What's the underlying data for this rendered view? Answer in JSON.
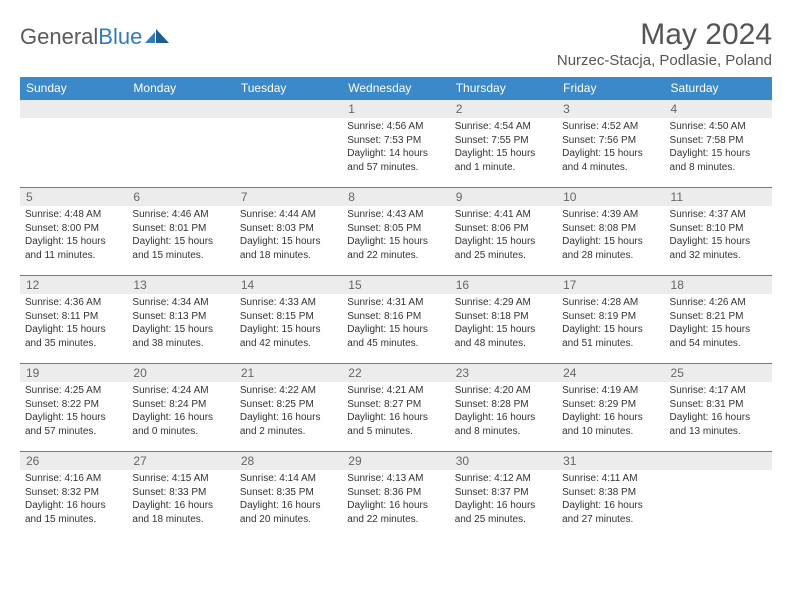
{
  "logo": {
    "text1": "General",
    "text2": "Blue"
  },
  "title": "May 2024",
  "location": "Nurzec-Stacja, Podlasie, Poland",
  "day_headers": [
    "Sunday",
    "Monday",
    "Tuesday",
    "Wednesday",
    "Thursday",
    "Friday",
    "Saturday"
  ],
  "colors": {
    "header_bg": "#3b89c9",
    "header_text": "#ffffff",
    "daynum_bg": "#ececec",
    "row_border": "#3b89c9",
    "text": "#333333",
    "title_text": "#555555"
  },
  "weeks": [
    [
      {
        "num": "",
        "lines": []
      },
      {
        "num": "",
        "lines": []
      },
      {
        "num": "",
        "lines": []
      },
      {
        "num": "1",
        "lines": [
          "Sunrise: 4:56 AM",
          "Sunset: 7:53 PM",
          "Daylight: 14 hours",
          "and 57 minutes."
        ]
      },
      {
        "num": "2",
        "lines": [
          "Sunrise: 4:54 AM",
          "Sunset: 7:55 PM",
          "Daylight: 15 hours",
          "and 1 minute."
        ]
      },
      {
        "num": "3",
        "lines": [
          "Sunrise: 4:52 AM",
          "Sunset: 7:56 PM",
          "Daylight: 15 hours",
          "and 4 minutes."
        ]
      },
      {
        "num": "4",
        "lines": [
          "Sunrise: 4:50 AM",
          "Sunset: 7:58 PM",
          "Daylight: 15 hours",
          "and 8 minutes."
        ]
      }
    ],
    [
      {
        "num": "5",
        "lines": [
          "Sunrise: 4:48 AM",
          "Sunset: 8:00 PM",
          "Daylight: 15 hours",
          "and 11 minutes."
        ]
      },
      {
        "num": "6",
        "lines": [
          "Sunrise: 4:46 AM",
          "Sunset: 8:01 PM",
          "Daylight: 15 hours",
          "and 15 minutes."
        ]
      },
      {
        "num": "7",
        "lines": [
          "Sunrise: 4:44 AM",
          "Sunset: 8:03 PM",
          "Daylight: 15 hours",
          "and 18 minutes."
        ]
      },
      {
        "num": "8",
        "lines": [
          "Sunrise: 4:43 AM",
          "Sunset: 8:05 PM",
          "Daylight: 15 hours",
          "and 22 minutes."
        ]
      },
      {
        "num": "9",
        "lines": [
          "Sunrise: 4:41 AM",
          "Sunset: 8:06 PM",
          "Daylight: 15 hours",
          "and 25 minutes."
        ]
      },
      {
        "num": "10",
        "lines": [
          "Sunrise: 4:39 AM",
          "Sunset: 8:08 PM",
          "Daylight: 15 hours",
          "and 28 minutes."
        ]
      },
      {
        "num": "11",
        "lines": [
          "Sunrise: 4:37 AM",
          "Sunset: 8:10 PM",
          "Daylight: 15 hours",
          "and 32 minutes."
        ]
      }
    ],
    [
      {
        "num": "12",
        "lines": [
          "Sunrise: 4:36 AM",
          "Sunset: 8:11 PM",
          "Daylight: 15 hours",
          "and 35 minutes."
        ]
      },
      {
        "num": "13",
        "lines": [
          "Sunrise: 4:34 AM",
          "Sunset: 8:13 PM",
          "Daylight: 15 hours",
          "and 38 minutes."
        ]
      },
      {
        "num": "14",
        "lines": [
          "Sunrise: 4:33 AM",
          "Sunset: 8:15 PM",
          "Daylight: 15 hours",
          "and 42 minutes."
        ]
      },
      {
        "num": "15",
        "lines": [
          "Sunrise: 4:31 AM",
          "Sunset: 8:16 PM",
          "Daylight: 15 hours",
          "and 45 minutes."
        ]
      },
      {
        "num": "16",
        "lines": [
          "Sunrise: 4:29 AM",
          "Sunset: 8:18 PM",
          "Daylight: 15 hours",
          "and 48 minutes."
        ]
      },
      {
        "num": "17",
        "lines": [
          "Sunrise: 4:28 AM",
          "Sunset: 8:19 PM",
          "Daylight: 15 hours",
          "and 51 minutes."
        ]
      },
      {
        "num": "18",
        "lines": [
          "Sunrise: 4:26 AM",
          "Sunset: 8:21 PM",
          "Daylight: 15 hours",
          "and 54 minutes."
        ]
      }
    ],
    [
      {
        "num": "19",
        "lines": [
          "Sunrise: 4:25 AM",
          "Sunset: 8:22 PM",
          "Daylight: 15 hours",
          "and 57 minutes."
        ]
      },
      {
        "num": "20",
        "lines": [
          "Sunrise: 4:24 AM",
          "Sunset: 8:24 PM",
          "Daylight: 16 hours",
          "and 0 minutes."
        ]
      },
      {
        "num": "21",
        "lines": [
          "Sunrise: 4:22 AM",
          "Sunset: 8:25 PM",
          "Daylight: 16 hours",
          "and 2 minutes."
        ]
      },
      {
        "num": "22",
        "lines": [
          "Sunrise: 4:21 AM",
          "Sunset: 8:27 PM",
          "Daylight: 16 hours",
          "and 5 minutes."
        ]
      },
      {
        "num": "23",
        "lines": [
          "Sunrise: 4:20 AM",
          "Sunset: 8:28 PM",
          "Daylight: 16 hours",
          "and 8 minutes."
        ]
      },
      {
        "num": "24",
        "lines": [
          "Sunrise: 4:19 AM",
          "Sunset: 8:29 PM",
          "Daylight: 16 hours",
          "and 10 minutes."
        ]
      },
      {
        "num": "25",
        "lines": [
          "Sunrise: 4:17 AM",
          "Sunset: 8:31 PM",
          "Daylight: 16 hours",
          "and 13 minutes."
        ]
      }
    ],
    [
      {
        "num": "26",
        "lines": [
          "Sunrise: 4:16 AM",
          "Sunset: 8:32 PM",
          "Daylight: 16 hours",
          "and 15 minutes."
        ]
      },
      {
        "num": "27",
        "lines": [
          "Sunrise: 4:15 AM",
          "Sunset: 8:33 PM",
          "Daylight: 16 hours",
          "and 18 minutes."
        ]
      },
      {
        "num": "28",
        "lines": [
          "Sunrise: 4:14 AM",
          "Sunset: 8:35 PM",
          "Daylight: 16 hours",
          "and 20 minutes."
        ]
      },
      {
        "num": "29",
        "lines": [
          "Sunrise: 4:13 AM",
          "Sunset: 8:36 PM",
          "Daylight: 16 hours",
          "and 22 minutes."
        ]
      },
      {
        "num": "30",
        "lines": [
          "Sunrise: 4:12 AM",
          "Sunset: 8:37 PM",
          "Daylight: 16 hours",
          "and 25 minutes."
        ]
      },
      {
        "num": "31",
        "lines": [
          "Sunrise: 4:11 AM",
          "Sunset: 8:38 PM",
          "Daylight: 16 hours",
          "and 27 minutes."
        ]
      },
      {
        "num": "",
        "lines": []
      }
    ]
  ]
}
